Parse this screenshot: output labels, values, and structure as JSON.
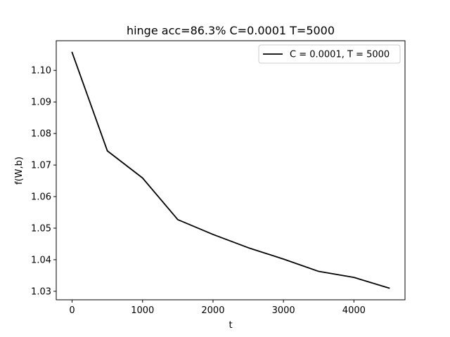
{
  "chart_data": {
    "type": "line",
    "title": "hinge acc=86.3% C=0.0001 T=5000",
    "xlabel": "t",
    "ylabel": "f(W,b)",
    "xlim": [
      -225,
      4725
    ],
    "ylim": [
      1.0273,
      1.1094
    ],
    "xticks": [
      0,
      1000,
      2000,
      3000,
      4000
    ],
    "xtick_labels": [
      "0",
      "1000",
      "2000",
      "3000",
      "4000"
    ],
    "yticks": [
      1.03,
      1.04,
      1.05,
      1.06,
      1.07,
      1.08,
      1.09,
      1.1
    ],
    "ytick_labels": [
      "1.03",
      "1.04",
      "1.05",
      "1.06",
      "1.07",
      "1.08",
      "1.09",
      "1.10"
    ],
    "grid": false,
    "legend_position": "top-right",
    "series": [
      {
        "name": "C = 0.0001, T = 5000",
        "color": "#000000",
        "x": [
          0,
          500,
          1000,
          1500,
          2000,
          2500,
          3000,
          3500,
          4000,
          4500
        ],
        "values": [
          1.1057,
          1.0745,
          1.0659,
          1.0527,
          1.048,
          1.0438,
          1.0402,
          1.0363,
          1.0344,
          1.031
        ]
      }
    ]
  }
}
